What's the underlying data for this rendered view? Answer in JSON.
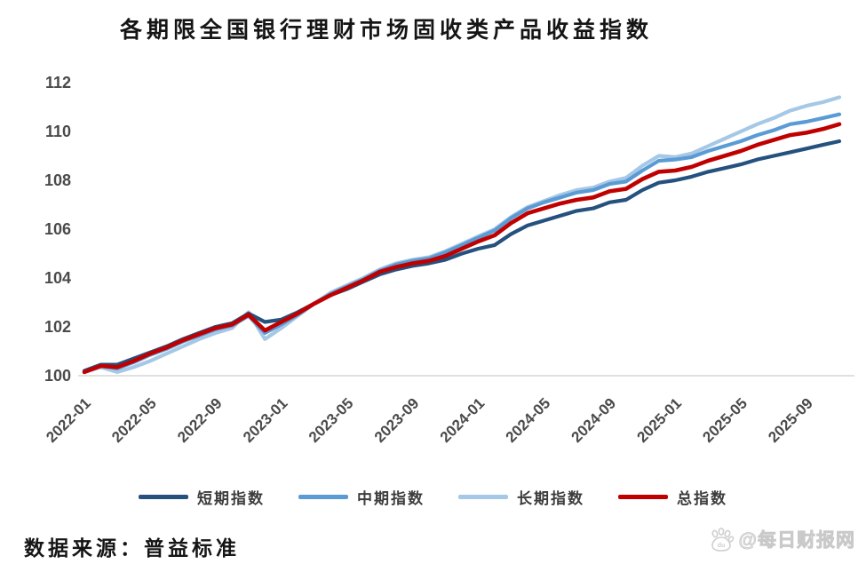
{
  "page": {
    "title": "各期限全国银行理财市场固收类产品收益指数",
    "source": "数据来源：普益标准",
    "watermark": {
      "icon": "baidu-paw",
      "icon_text": "du",
      "text": "@每日财报网"
    }
  },
  "colors": {
    "short_term": "#24517E",
    "medium_term": "#5B9BD5",
    "long_term": "#A5C8E6",
    "total": "#C00000",
    "axis_text": "#4a4a4a",
    "axis_line": "#d6d6d6"
  },
  "chart_data": {
    "type": "line",
    "title": "各期限全国银行理财市场固收类产品收益指数",
    "xlabel": "",
    "ylabel": "",
    "ylim": [
      100,
      112
    ],
    "y_ticks": [
      100,
      102,
      104,
      106,
      108,
      110,
      112
    ],
    "grid": false,
    "legend_position": "bottom",
    "x": [
      "2022-01",
      "2022-02",
      "2022-03",
      "2022-04",
      "2022-05",
      "2022-06",
      "2022-07",
      "2022-08",
      "2022-09",
      "2022-10",
      "2022-11",
      "2022-12",
      "2023-01",
      "2023-02",
      "2023-03",
      "2023-04",
      "2023-05",
      "2023-06",
      "2023-07",
      "2023-08",
      "2023-09",
      "2023-10",
      "2023-11",
      "2023-12",
      "2024-01",
      "2024-02",
      "2024-03",
      "2024-04",
      "2024-05",
      "2024-06",
      "2024-07",
      "2024-08",
      "2024-09",
      "2024-10",
      "2024-11",
      "2024-12",
      "2025-01",
      "2025-02",
      "2025-03",
      "2025-04",
      "2025-05",
      "2025-06",
      "2025-07",
      "2025-08",
      "2025-09",
      "2025-10",
      "2025-11"
    ],
    "x_tick_labels": [
      "2022-01",
      "2022-05",
      "2022-09",
      "2023-01",
      "2023-05",
      "2023-09",
      "2024-01",
      "2024-05",
      "2024-09",
      "2025-01",
      "2025-05",
      "2025-09"
    ],
    "series": [
      {
        "id": "short-term-index",
        "name": "短期指数",
        "color": "#24517E",
        "values": [
          100.2,
          100.45,
          100.45,
          100.7,
          100.95,
          101.2,
          101.5,
          101.75,
          102.0,
          102.15,
          102.55,
          102.2,
          102.3,
          102.6,
          102.95,
          103.3,
          103.55,
          103.85,
          104.15,
          104.35,
          104.5,
          104.6,
          104.75,
          105.0,
          105.2,
          105.35,
          105.8,
          106.15,
          106.35,
          106.55,
          106.75,
          106.85,
          107.1,
          107.2,
          107.6,
          107.9,
          108.0,
          108.15,
          108.35,
          108.5,
          108.65,
          108.85,
          109.0,
          109.15,
          109.3,
          109.45,
          109.6
        ]
      },
      {
        "id": "medium-term-index",
        "name": "中期指数",
        "color": "#5B9BD5",
        "values": [
          100.15,
          100.4,
          100.3,
          100.55,
          100.85,
          101.1,
          101.4,
          101.65,
          101.9,
          102.05,
          102.45,
          101.75,
          102.1,
          102.5,
          102.95,
          103.35,
          103.65,
          103.95,
          104.3,
          104.55,
          104.7,
          104.8,
          105.05,
          105.35,
          105.65,
          105.95,
          106.45,
          106.85,
          107.1,
          107.3,
          107.5,
          107.6,
          107.85,
          107.95,
          108.4,
          108.8,
          108.85,
          108.95,
          109.2,
          109.4,
          109.6,
          109.85,
          110.05,
          110.3,
          110.4,
          110.55,
          110.7
        ]
      },
      {
        "id": "long-term-index",
        "name": "长期指数",
        "color": "#A5C8E6",
        "values": [
          100.15,
          100.35,
          100.15,
          100.35,
          100.6,
          100.9,
          101.2,
          101.5,
          101.75,
          101.95,
          102.6,
          101.5,
          101.95,
          102.45,
          102.95,
          103.4,
          103.7,
          104.0,
          104.35,
          104.6,
          104.75,
          104.85,
          105.1,
          105.4,
          105.7,
          106.0,
          106.5,
          106.9,
          107.15,
          107.4,
          107.6,
          107.7,
          107.95,
          108.1,
          108.6,
          109.0,
          108.95,
          109.1,
          109.4,
          109.7,
          110.0,
          110.3,
          110.55,
          110.85,
          111.05,
          111.2,
          111.4
        ]
      },
      {
        "id": "total-index",
        "name": "总指数",
        "color": "#C00000",
        "values": [
          100.15,
          100.4,
          100.35,
          100.6,
          100.9,
          101.15,
          101.45,
          101.7,
          101.95,
          102.1,
          102.5,
          101.85,
          102.2,
          102.55,
          102.95,
          103.3,
          103.6,
          103.9,
          104.25,
          104.45,
          104.6,
          104.7,
          104.9,
          105.2,
          105.5,
          105.75,
          106.25,
          106.65,
          106.85,
          107.05,
          107.2,
          107.3,
          107.55,
          107.65,
          108.05,
          108.35,
          108.4,
          108.55,
          108.8,
          109.0,
          109.2,
          109.45,
          109.65,
          109.85,
          109.95,
          110.1,
          110.3
        ]
      }
    ]
  }
}
